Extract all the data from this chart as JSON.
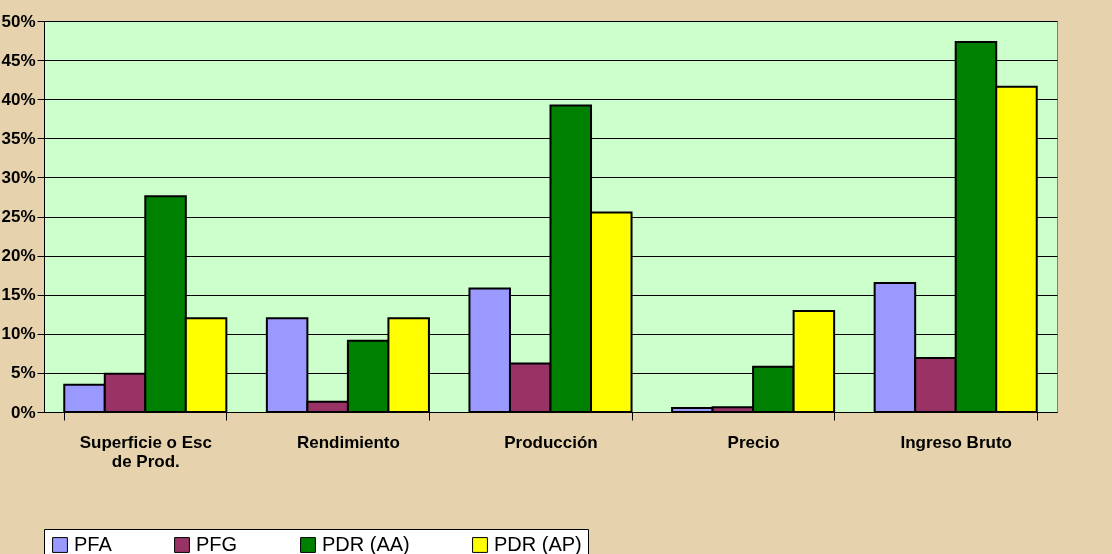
{
  "chart_data": {
    "type": "bar",
    "categories": [
      "Superficie o Esc de Prod.",
      "Rendimiento",
      "Producción",
      "Precio",
      "Ingreso Bruto"
    ],
    "series": [
      {
        "name": "PFA",
        "color": "#9999ff",
        "values": [
          3.5,
          12.0,
          15.8,
          0.5,
          16.5
        ]
      },
      {
        "name": "PFG",
        "color": "#993366",
        "values": [
          4.9,
          1.3,
          6.2,
          0.6,
          6.9
        ]
      },
      {
        "name": "PDR (AA)",
        "color": "#008000",
        "values": [
          27.6,
          9.1,
          39.2,
          5.8,
          47.3
        ]
      },
      {
        "name": "PDR (AP)",
        "color": "#ffff00",
        "values": [
          12.0,
          12.0,
          25.5,
          12.9,
          41.6
        ]
      }
    ],
    "ylim": [
      0,
      50
    ],
    "yticks": [
      {
        "value": 0,
        "label": "0%"
      },
      {
        "value": 5,
        "label": "5%"
      },
      {
        "value": 10,
        "label": "10%"
      },
      {
        "value": 15,
        "label": "15%"
      },
      {
        "value": 20,
        "label": "20%"
      },
      {
        "value": 25,
        "label": "25%"
      },
      {
        "value": 30,
        "label": "30%"
      },
      {
        "value": 35,
        "label": "35%"
      },
      {
        "value": 40,
        "label": "40%"
      },
      {
        "value": 45,
        "label": "45%"
      },
      {
        "value": 50,
        "label": "50%"
      }
    ],
    "grid": "y",
    "legend": "bottom"
  }
}
